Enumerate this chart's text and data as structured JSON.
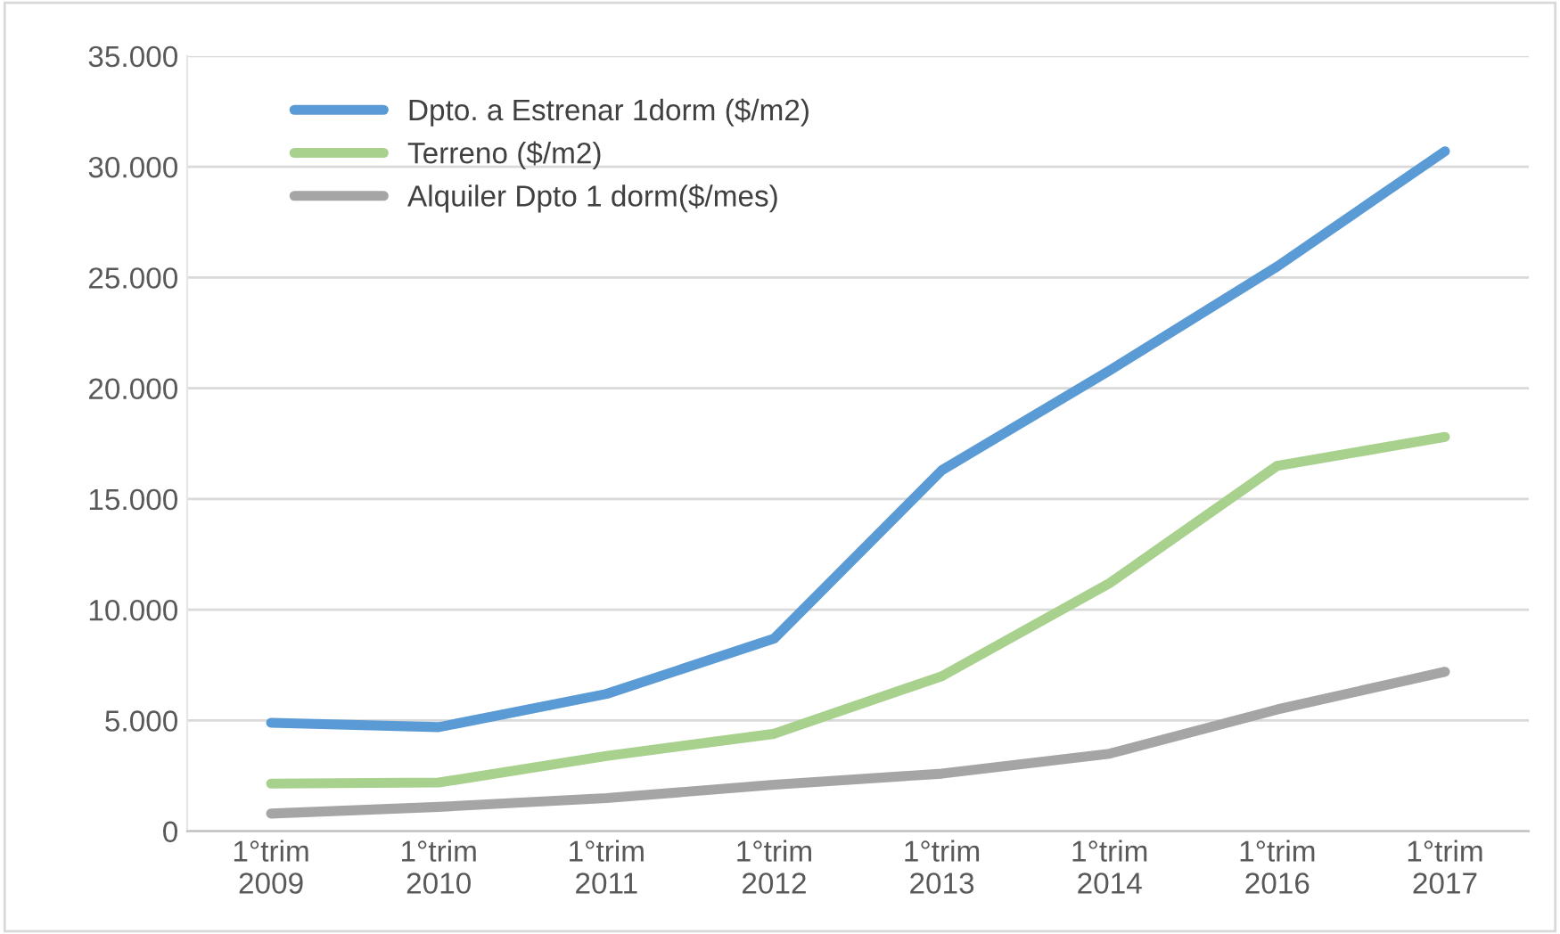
{
  "chart_data": {
    "type": "line",
    "categories": [
      "1°trim\n2009",
      "1°trim\n2010",
      "1°trim\n2011",
      "1°trim\n2012",
      "1°trim\n2013",
      "1°trim\n2014",
      "1°trim\n2016",
      "1°trim\n2017"
    ],
    "series": [
      {
        "name": "Dpto. a Estrenar 1dorm ($/m2)",
        "color": "#5b9bd5",
        "values": [
          4900,
          4700,
          6200,
          8700,
          16300,
          20800,
          25500,
          30700
        ]
      },
      {
        "name": "Terreno ($/m2)",
        "color": "#a9d18e",
        "values": [
          2150,
          2200,
          3400,
          4400,
          7000,
          11200,
          16500,
          17800
        ]
      },
      {
        "name": "Alquiler Dpto 1 dorm($/mes)",
        "color": "#a5a5a5",
        "values": [
          800,
          1100,
          1500,
          2100,
          2600,
          3500,
          5500,
          7200
        ]
      }
    ],
    "ylim": [
      0,
      35000
    ],
    "yticks": [
      0,
      {
        "value": 5000,
        "label": "5.000"
      },
      {
        "value": 10000,
        "label": "10.000"
      },
      {
        "value": 15000,
        "label": "15.000"
      },
      {
        "value": 20000,
        "label": "20.000"
      },
      {
        "value": 25000,
        "label": "25.000"
      },
      {
        "value": 30000,
        "label": "30.000"
      },
      {
        "value": 35000,
        "label": "35.000"
      }
    ],
    "grid": "y",
    "legend": "top left",
    "marker": "none",
    "line_style": "solid"
  }
}
